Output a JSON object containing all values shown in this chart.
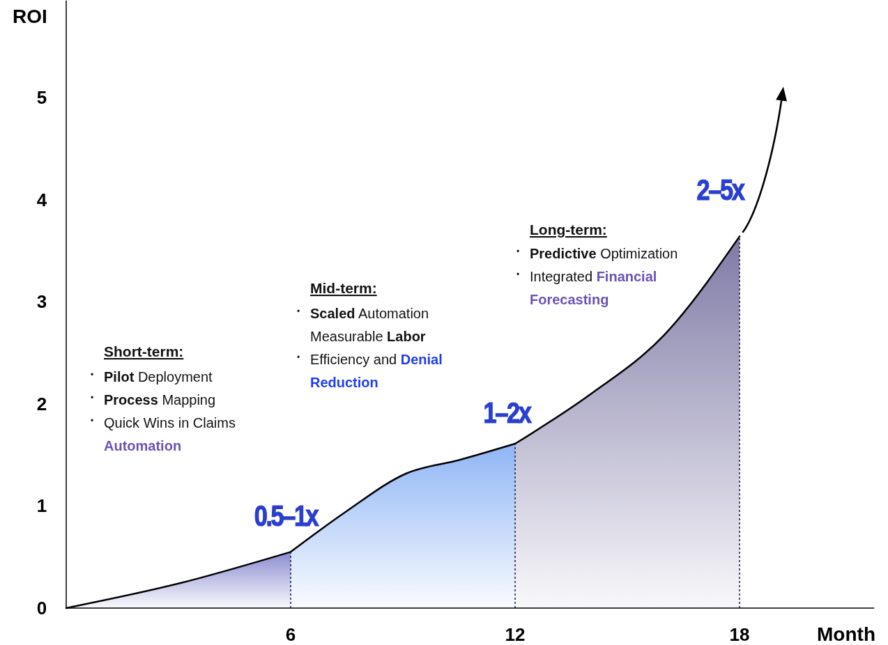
{
  "chart_data": {
    "type": "area",
    "xlabel": "Month",
    "ylabel": "ROI",
    "xlim": [
      0,
      21.6
    ],
    "ylim": [
      0,
      5.95
    ],
    "xticks": [
      6,
      12,
      18
    ],
    "yticks": [
      0,
      1,
      2,
      3,
      4,
      5
    ],
    "series": [
      {
        "color": "#8a8cd0",
        "x": [
          0,
          3,
          6
        ],
        "values": [
          0,
          0.24,
          0.55
        ]
      },
      {
        "color": "#8fb5f5",
        "x": [
          6,
          7.5,
          9.1,
          10.5,
          12
        ],
        "values": [
          0.55,
          0.95,
          1.32,
          1.45,
          1.61
        ]
      },
      {
        "color": "#7f7aa6",
        "x": [
          12,
          14,
          16,
          18
        ],
        "values": [
          1.61,
          2.09,
          2.68,
          3.64
        ]
      }
    ],
    "ref_lines": [
      {
        "axis": "x",
        "value": 6,
        "line_style": "dotted",
        "color": "#1a1a40"
      },
      {
        "axis": "x",
        "value": 12,
        "line_style": "dotted",
        "color": "#1a1a40"
      },
      {
        "axis": "x",
        "value": 18,
        "line_style": "dotted",
        "color": "#1a1a40"
      }
    ],
    "annotations": [
      "0.5–1x",
      "1–2x",
      "2–5x",
      "Short-term:",
      "$^{•}$ Pilot Deployment",
      "$^{•}$ Process Mapping",
      "$^{•}$ Quick Wins in Claims",
      "Automation",
      "Mid-term:",
      "$^{•}$ Scaled Automation",
      "Measurable Labor",
      "$^{•}$ Efficiency and Denial",
      "Reduction",
      "Long-term:",
      "$^{•}$ Predictive Optimization",
      "$^{•}$ Integrated Financial",
      "Forecasting"
    ]
  }
}
